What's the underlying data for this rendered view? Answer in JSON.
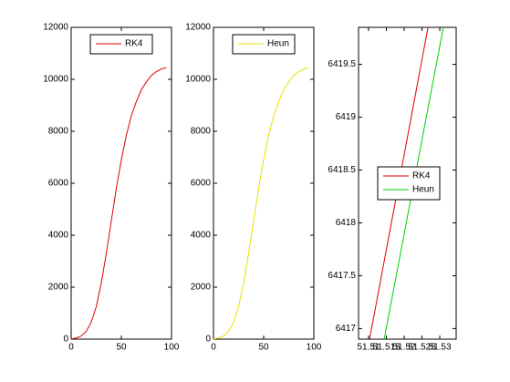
{
  "chart_data": [
    {
      "type": "line",
      "xlim": [
        0,
        100
      ],
      "xticks": [
        0,
        50,
        100
      ],
      "ylim": [
        0,
        12000
      ],
      "yticks": [
        0,
        2000,
        4000,
        6000,
        8000,
        10000,
        12000
      ],
      "legend": "north",
      "series": [
        {
          "name": "RK4",
          "color": "#e00000",
          "x": [
            0,
            5,
            10,
            15,
            20,
            25,
            30,
            35,
            40,
            45,
            50,
            55,
            60,
            65,
            70,
            75,
            80,
            85,
            90,
            95
          ],
          "values": [
            10,
            40,
            120,
            300,
            650,
            1250,
            2150,
            3300,
            4550,
            5800,
            6900,
            7850,
            8600,
            9150,
            9600,
            9900,
            10150,
            10300,
            10400,
            10450
          ]
        }
      ]
    },
    {
      "type": "line",
      "xlim": [
        0,
        100
      ],
      "xticks": [
        0,
        50,
        100
      ],
      "ylim": [
        0,
        12000
      ],
      "yticks": [
        0,
        2000,
        4000,
        6000,
        8000,
        10000,
        12000
      ],
      "legend": "north",
      "series": [
        {
          "name": "Heun",
          "color": "#e8e000",
          "x": [
            0,
            5,
            10,
            15,
            20,
            25,
            30,
            35,
            40,
            45,
            50,
            55,
            60,
            65,
            70,
            75,
            80,
            85,
            90,
            95
          ],
          "values": [
            10,
            40,
            120,
            300,
            650,
            1250,
            2150,
            3300,
            4550,
            5800,
            6900,
            7850,
            8600,
            9150,
            9600,
            9900,
            10150,
            10300,
            10400,
            10450
          ]
        }
      ]
    },
    {
      "type": "line",
      "xlim": [
        51.5072,
        51.5346
      ],
      "xticks": [
        51.51,
        51.515,
        51.52,
        51.525,
        51.53
      ],
      "ylim": [
        6416.9,
        6419.85
      ],
      "yticks": [
        6417,
        6417.5,
        6418,
        6418.5,
        6419,
        6419.5
      ],
      "legend": "east",
      "series": [
        {
          "name": "RK4",
          "color": "#e00000",
          "x": [
            51.5103,
            51.5267
          ],
          "values": [
            6416.9,
            6419.85
          ]
        },
        {
          "name": "Heun",
          "color": "#00d000",
          "x": [
            51.5144,
            51.531
          ],
          "values": [
            6416.9,
            6419.85
          ]
        }
      ]
    }
  ]
}
